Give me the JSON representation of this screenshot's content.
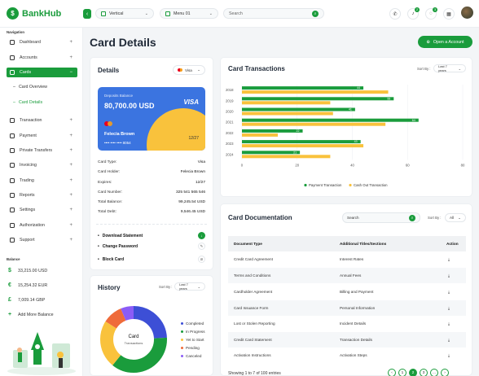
{
  "app": {
    "name": "BankHub"
  },
  "topbar": {
    "layout_select": "Vertical",
    "menu_select": "Menu 01",
    "search_placeholder": "Search",
    "notif_count_1": "2",
    "notif_count_2": "3"
  },
  "sidebar": {
    "nav_title": "Navigation",
    "items": [
      {
        "label": "Dashboard",
        "icon": "home-icon"
      },
      {
        "label": "Accounts",
        "icon": "user-icon"
      },
      {
        "label": "Cards",
        "icon": "card-icon"
      },
      {
        "label": "Transaction",
        "icon": "transfer-icon"
      },
      {
        "label": "Payment",
        "icon": "payment-icon"
      },
      {
        "label": "Private Transfers",
        "icon": "chart-icon"
      },
      {
        "label": "Invoicing",
        "icon": "invoice-icon"
      },
      {
        "label": "Trading",
        "icon": "trading-icon"
      },
      {
        "label": "Reports",
        "icon": "report-icon"
      },
      {
        "label": "Settings",
        "icon": "gear-icon"
      },
      {
        "label": "Authorization",
        "icon": "lock-icon"
      },
      {
        "label": "Support",
        "icon": "support-icon"
      }
    ],
    "sub_items": [
      {
        "label": "Card Overview"
      },
      {
        "label": "Card Details"
      }
    ],
    "balance_title": "Balance",
    "balances": [
      {
        "symbol": "$",
        "label": "33,215.00 USD"
      },
      {
        "symbol": "€",
        "label": "15,254.32 EUR"
      },
      {
        "symbol": "£",
        "label": "7,009.14 GBP"
      },
      {
        "symbol": "+",
        "label": "Add More Balance"
      }
    ]
  },
  "page": {
    "title": "Card Details",
    "open_account_label": "Open a Account"
  },
  "details": {
    "title": "Details",
    "card_select": "Visa",
    "bank_card": {
      "deposit_label": "Deposits Balance",
      "amount": "80,700.00 USD",
      "brand": "VISA",
      "holder": "Felecia Brown",
      "number": "•••• •••• •••• 8054",
      "expiry": "12/27"
    },
    "rows": [
      {
        "k": "Card Type:",
        "v": "Visa"
      },
      {
        "k": "Card Holder:",
        "v": "Felecia Brown"
      },
      {
        "k": "Expires:",
        "v": "12/27"
      },
      {
        "k": "Card Number:",
        "v": "325 541 565 546"
      },
      {
        "k": "Total Balance:",
        "v": "99,245.54 USD"
      },
      {
        "k": "Total Debt:",
        "v": "9,546.45 USD"
      }
    ],
    "actions": [
      {
        "label": "Download Statement"
      },
      {
        "label": "Change Password"
      },
      {
        "label": "Block Card"
      }
    ]
  },
  "history": {
    "title": "History",
    "sort_label": "Sort By :",
    "sort_value": "Last 7 years",
    "center_title": "Card",
    "center_sub": "Transactions",
    "legend": [
      {
        "label": "Completed",
        "color": "#3d4fd6"
      },
      {
        "label": "In Progress",
        "color": "#1a9c3c"
      },
      {
        "label": "Yet to Start",
        "color": "#f9c23c"
      },
      {
        "label": "Pending",
        "color": "#ef6b3a"
      },
      {
        "label": "Canceled",
        "color": "#8b5cf6"
      }
    ]
  },
  "transactions": {
    "title": "Card Transactions",
    "sort_label": "Sort By :",
    "sort_value": "Last 7 years"
  },
  "chart_data": {
    "type": "bar",
    "orientation": "horizontal",
    "categories": [
      "2018",
      "2019",
      "2020",
      "2021",
      "2022",
      "2023",
      "2024"
    ],
    "series": [
      {
        "name": "Payment Transaction",
        "color": "#1a9c3c",
        "values": [
          44,
          55,
          41,
          64,
          22,
          43,
          21
        ]
      },
      {
        "name": "Cash Out Transaction",
        "color": "#f9c23c",
        "values": [
          53,
          32,
          33,
          52,
          13,
          44,
          32
        ]
      }
    ],
    "data_labels": [
      "44",
      "55",
      "41",
      "64",
      "22",
      "43",
      "21"
    ],
    "x_ticks": [
      "0",
      "20",
      "40",
      "60",
      "80"
    ],
    "xlim": [
      0,
      80
    ],
    "legend_position": "bottom"
  },
  "documentation": {
    "title": "Card Documentation",
    "search_placeholder": "Search",
    "sort_label": "Sort By :",
    "sort_value": "All",
    "headers": [
      "Document Type",
      "Additional Titles/Sections",
      "Action"
    ],
    "rows": [
      {
        "a": "Credit Card Agreement",
        "b": "Interest Rates"
      },
      {
        "a": "Terms and Conditions",
        "b": "Annual Fees"
      },
      {
        "a": "Cardholder Agreement",
        "b": "Billing and Payment"
      },
      {
        "a": "Card Issuance Form",
        "b": "Personal Information"
      },
      {
        "a": "Lost or Stolen Reporting",
        "b": "Incident Details"
      },
      {
        "a": "Credit Card Statement",
        "b": "Transaction Details"
      },
      {
        "a": "Activation Instructions",
        "b": "Activation Steps"
      }
    ],
    "showing": "Showing 1 to 7 of 100 entries",
    "pages": [
      "1",
      "2",
      "3"
    ]
  }
}
